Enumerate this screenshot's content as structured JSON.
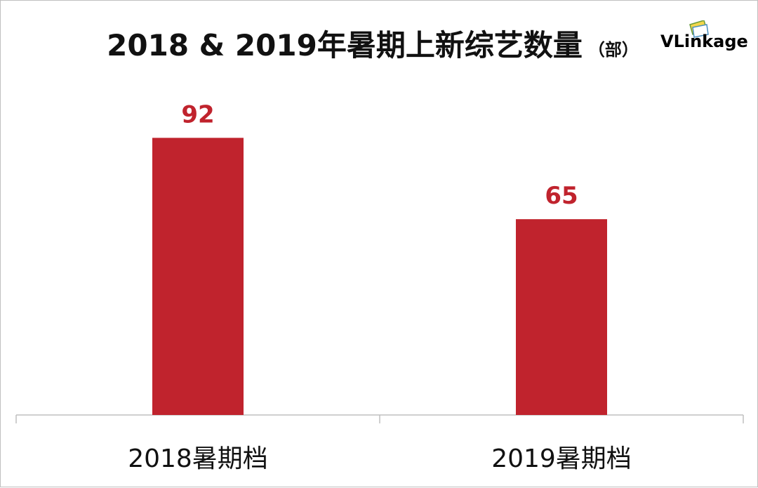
{
  "title": "2018 & 2019年暑期上新综艺数量",
  "title_unit": "（部）",
  "logo": {
    "text": "VLinkage"
  },
  "colors": {
    "bar": "#c0232d",
    "axis": "#bfbfbf"
  },
  "chart_data": {
    "type": "bar",
    "title": "2018 & 2019年暑期上新综艺数量（部）",
    "categories": [
      "2018暑期档",
      "2019暑期档"
    ],
    "values": [
      92,
      65
    ],
    "xlabel": "",
    "ylabel": "",
    "ylim": [
      0,
      100
    ],
    "grid": false,
    "data_labels": true
  }
}
